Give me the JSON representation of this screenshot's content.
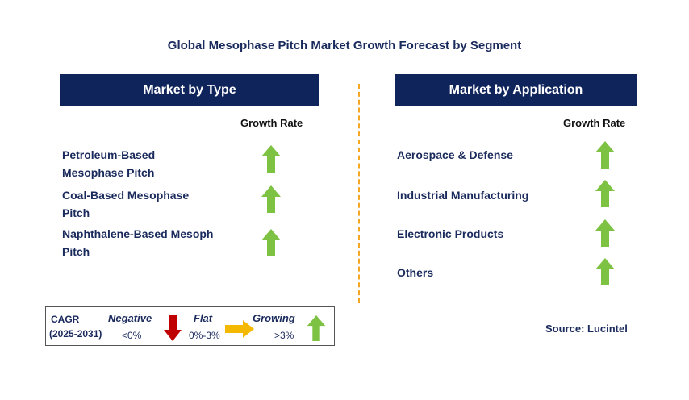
{
  "title": "Global Mesophase Pitch Market Growth Forecast by Segment",
  "left_panel": {
    "header": "Market by Type",
    "growth_label": "Growth Rate",
    "items": [
      {
        "line1": "Petroleum-Based",
        "line2": "Mesophase Pitch",
        "trend": "growing"
      },
      {
        "line1": "Coal-Based Mesophase",
        "line2": "Pitch",
        "trend": "growing"
      },
      {
        "line1": "Naphthalene-Based Mesoph",
        "line2": "Pitch",
        "trend": "growing"
      }
    ]
  },
  "right_panel": {
    "header": "Market by Application",
    "growth_label": "Growth Rate",
    "items": [
      {
        "label": "Aerospace & Defense",
        "trend": "growing"
      },
      {
        "label": "Industrial Manufacturing",
        "trend": "growing"
      },
      {
        "label": "Electronic Products",
        "trend": "growing"
      },
      {
        "label": "Others",
        "trend": "growing"
      }
    ]
  },
  "legend": {
    "cagr_label": "CAGR",
    "period": "(2025-2031)",
    "negative_label": "Negative",
    "negative_range": "<0%",
    "flat_label": "Flat",
    "flat_range": "0%-3%",
    "growing_label": "Growing",
    "growing_range": ">3%"
  },
  "source": "Source: Lucintel",
  "colors": {
    "header_bg": "#10245c",
    "up_arrow": "#7dc242",
    "down_arrow": "#c00000",
    "flat_arrow": "#f5b800",
    "divider": "#f5a623"
  }
}
